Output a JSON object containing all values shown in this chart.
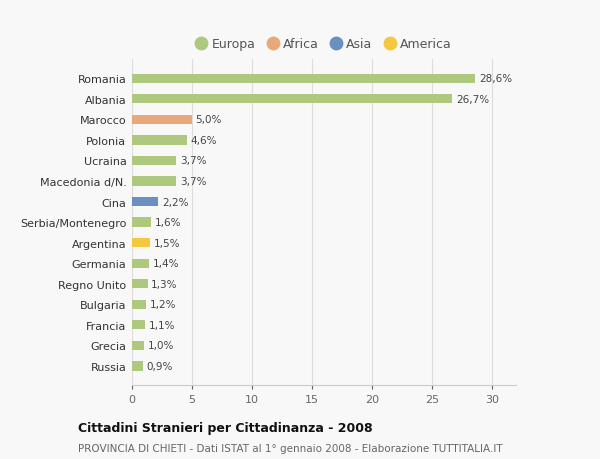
{
  "countries": [
    "Russia",
    "Grecia",
    "Francia",
    "Bulgaria",
    "Regno Unito",
    "Germania",
    "Argentina",
    "Serbia/Montenegro",
    "Cina",
    "Macedonia d/N.",
    "Ucraina",
    "Polonia",
    "Marocco",
    "Albania",
    "Romania"
  ],
  "values": [
    0.9,
    1.0,
    1.1,
    1.2,
    1.3,
    1.4,
    1.5,
    1.6,
    2.2,
    3.7,
    3.7,
    4.6,
    5.0,
    26.7,
    28.6
  ],
  "labels": [
    "0,9%",
    "1,0%",
    "1,1%",
    "1,2%",
    "1,3%",
    "1,4%",
    "1,5%",
    "1,6%",
    "2,2%",
    "3,7%",
    "3,7%",
    "4,6%",
    "5,0%",
    "26,7%",
    "28,6%"
  ],
  "continents": [
    "Europa",
    "Europa",
    "Europa",
    "Europa",
    "Europa",
    "Europa",
    "America",
    "Europa",
    "Asia",
    "Europa",
    "Europa",
    "Europa",
    "Africa",
    "Europa",
    "Europa"
  ],
  "colors": {
    "Europa": "#aec97e",
    "Africa": "#e8a87c",
    "Asia": "#6b8fbf",
    "America": "#f5c842"
  },
  "legend_order": [
    "Europa",
    "Africa",
    "Asia",
    "America"
  ],
  "legend_colors": {
    "Europa": "#aec97e",
    "Africa": "#e8a87c",
    "Asia": "#6b8fbf",
    "America": "#f5c842"
  },
  "xlim": [
    0,
    32
  ],
  "xticks": [
    0,
    5,
    10,
    15,
    20,
    25,
    30
  ],
  "title": "Cittadini Stranieri per Cittadinanza - 2008",
  "subtitle": "PROVINCIA DI CHIETI - Dati ISTAT al 1° gennaio 2008 - Elaborazione TUTTITALIA.IT",
  "bg_color": "#f8f8f8",
  "grid_color": "#dddddd",
  "bar_height": 0.45
}
